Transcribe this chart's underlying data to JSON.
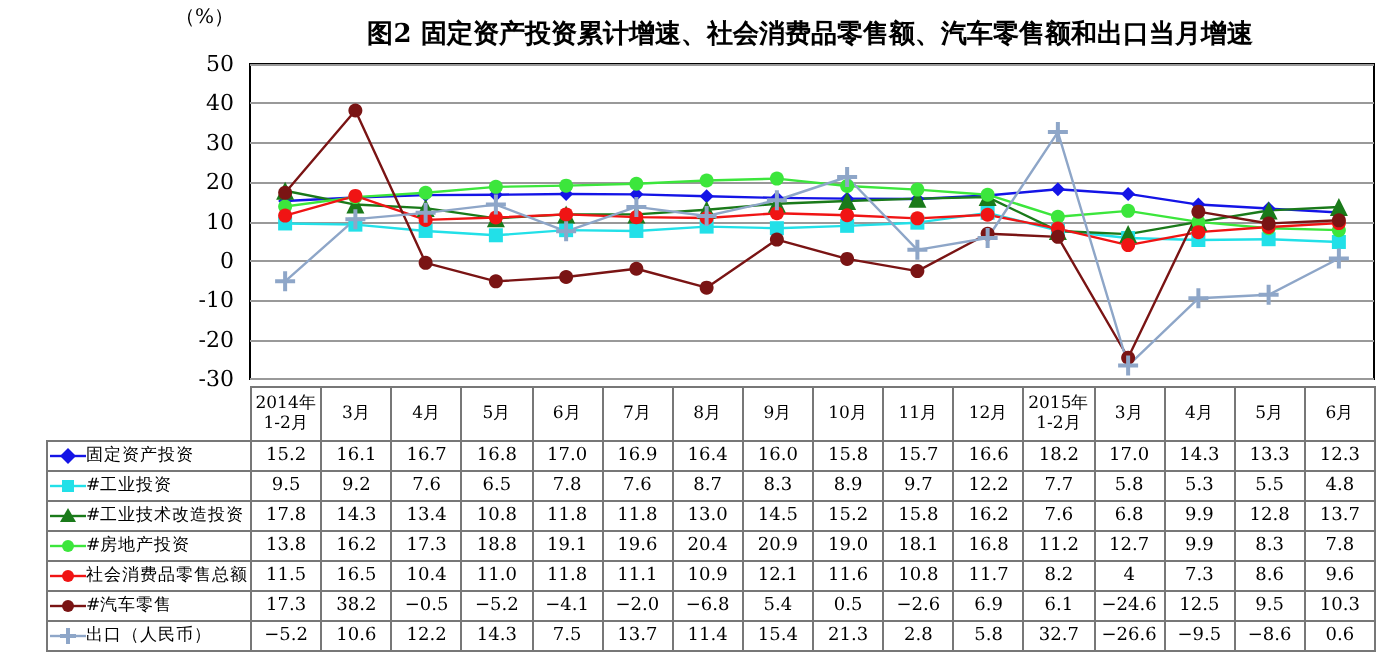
{
  "chart_data": {
    "type": "line",
    "title": "图2 固定资产投资累计增速、社会消费品零售额、汽车零售额和出口当月增速",
    "ylabel": "（%）",
    "categories": [
      "2014年1-2月",
      "3月",
      "4月",
      "5月",
      "6月",
      "7月",
      "8月",
      "9月",
      "10月",
      "11月",
      "12月",
      "2015年1-2月",
      "3月",
      "4月",
      "5月",
      "6月"
    ],
    "ylim": [
      -30,
      50
    ],
    "yticks": [
      -30,
      -20,
      -10,
      0,
      10,
      20,
      30,
      40,
      50
    ],
    "grid": "y",
    "legend": "bottom left",
    "series": [
      {
        "name": "固定资产投资",
        "color": "#1414e6",
        "marker": "diamond",
        "values": [
          15.2,
          16.1,
          16.7,
          16.8,
          17.0,
          16.9,
          16.4,
          16.0,
          15.8,
          15.7,
          16.6,
          18.2,
          17.0,
          14.3,
          13.3,
          12.3
        ],
        "value_labels": [
          "15.2",
          "16.1",
          "16.7",
          "16.8",
          "17.0",
          "16.9",
          "16.4",
          "16.0",
          "15.8",
          "15.7",
          "16.6",
          "18.2",
          "17.0",
          "14.3",
          "13.3",
          "12.3"
        ]
      },
      {
        "name": "#工业投资",
        "color": "#22e0e8",
        "marker": "square",
        "values": [
          9.5,
          9.2,
          7.6,
          6.5,
          7.8,
          7.6,
          8.7,
          8.3,
          8.9,
          9.7,
          12.2,
          7.7,
          5.8,
          5.3,
          5.5,
          4.8
        ],
        "value_labels": [
          "9.5",
          "9.2",
          "7.6",
          "6.5",
          "7.8",
          "7.6",
          "8.7",
          "8.3",
          "8.9",
          "9.7",
          "12.2",
          "7.7",
          "5.8",
          "5.3",
          "5.5",
          "4.8"
        ]
      },
      {
        "name": "#工业技术改造投资",
        "color": "#1a7a1a",
        "marker": "triangle",
        "values": [
          17.8,
          14.3,
          13.4,
          10.8,
          11.8,
          11.8,
          13.0,
          14.5,
          15.2,
          15.8,
          16.2,
          7.6,
          6.8,
          9.9,
          12.8,
          13.7
        ],
        "value_labels": [
          "17.8",
          "14.3",
          "13.4",
          "10.8",
          "11.8",
          "11.8",
          "13.0",
          "14.5",
          "15.2",
          "15.8",
          "16.2",
          "7.6",
          "6.8",
          "9.9",
          "12.8",
          "13.7"
        ]
      },
      {
        "name": "#房地产投资",
        "color": "#3ce63c",
        "marker": "circle",
        "values": [
          13.8,
          16.2,
          17.3,
          18.8,
          19.1,
          19.6,
          20.4,
          20.9,
          19.0,
          18.1,
          16.8,
          11.2,
          12.7,
          9.9,
          8.3,
          7.8
        ],
        "value_labels": [
          "13.8",
          "16.2",
          "17.3",
          "18.8",
          "19.1",
          "19.6",
          "20.4",
          "20.9",
          "19.0",
          "18.1",
          "16.8",
          "11.2",
          "12.7",
          "9.9",
          "8.3",
          "7.8"
        ]
      },
      {
        "name": "社会消费品零售总额",
        "color": "#f01414",
        "marker": "circle",
        "values": [
          11.5,
          16.5,
          10.4,
          11.0,
          11.8,
          11.1,
          10.9,
          12.1,
          11.6,
          10.8,
          11.7,
          8.2,
          4,
          7.3,
          8.6,
          9.6
        ],
        "value_labels": [
          "11.5",
          "16.5",
          "10.4",
          "11.0",
          "11.8",
          "11.1",
          "10.9",
          "12.1",
          "11.6",
          "10.8",
          "11.7",
          "8.2",
          "4",
          "7.3",
          "8.6",
          "9.6"
        ]
      },
      {
        "name": "#汽车零售",
        "color": "#7a1414",
        "marker": "circle",
        "values": [
          17.3,
          38.2,
          -0.5,
          -5.2,
          -4.1,
          -2.0,
          -6.8,
          5.4,
          0.5,
          -2.6,
          6.9,
          6.1,
          -24.6,
          12.5,
          9.5,
          10.3
        ],
        "value_labels": [
          "17.3",
          "38.2",
          "−0.5",
          "−5.2",
          "−4.1",
          "−2.0",
          "−6.8",
          "5.4",
          "0.5",
          "−2.6",
          "6.9",
          "6.1",
          "−24.6",
          "12.5",
          "9.5",
          "10.3"
        ]
      },
      {
        "name": "出口（人民币）",
        "color": "#8ea6c8",
        "marker": "cross",
        "values": [
          -5.2,
          10.6,
          12.2,
          14.3,
          7.5,
          13.7,
          11.4,
          15.4,
          21.3,
          2.8,
          5.8,
          32.7,
          -26.6,
          -9.5,
          -8.6,
          0.6
        ],
        "value_labels": [
          "−5.2",
          "10.6",
          "12.2",
          "14.3",
          "7.5",
          "13.7",
          "11.4",
          "15.4",
          "21.3",
          "2.8",
          "5.8",
          "32.7",
          "−26.6",
          "−9.5",
          "−8.6",
          "0.6"
        ]
      }
    ]
  }
}
